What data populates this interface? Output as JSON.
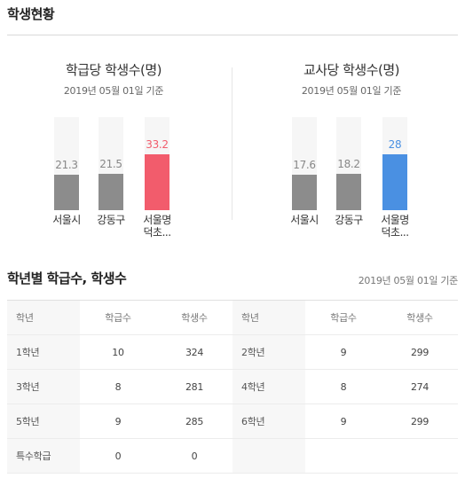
{
  "header": {
    "title": "학생현황"
  },
  "charts": [
    {
      "title": "학급당 학생수(명)",
      "date": "2019년 05월 01일 기준",
      "bars": [
        {
          "label": [
            "서울시"
          ],
          "value_text": "21.3",
          "value": 21.3,
          "highlight": false,
          "color": "#8c8c8c",
          "value_color": "#888888"
        },
        {
          "label": [
            "강동구"
          ],
          "value_text": "21.5",
          "value": 21.5,
          "highlight": false,
          "color": "#8c8c8c",
          "value_color": "#888888"
        },
        {
          "label": [
            "서울명",
            "덕초..."
          ],
          "value_text": "33.2",
          "value": 33.2,
          "highlight": true,
          "color": "#f25c6c",
          "value_color": "#f25c6c"
        }
      ],
      "max": 33.2
    },
    {
      "title": "교사당 학생수(명)",
      "date": "2019년 05월 01일 기준",
      "bars": [
        {
          "label": [
            "서울시"
          ],
          "value_text": "17.6",
          "value": 17.6,
          "highlight": false,
          "color": "#8c8c8c",
          "value_color": "#888888"
        },
        {
          "label": [
            "강동구"
          ],
          "value_text": "18.2",
          "value": 18.2,
          "highlight": false,
          "color": "#8c8c8c",
          "value_color": "#888888"
        },
        {
          "label": [
            "서울명",
            "덕초..."
          ],
          "value_text": "28",
          "value": 28,
          "highlight": true,
          "color": "#4a90e2",
          "value_color": "#4a90e2"
        }
      ],
      "max": 28
    }
  ],
  "grade_section": {
    "title": "학년별 학급수, 학생수",
    "date": "2019년 05월 01일 기준",
    "headers": [
      "학년",
      "학급수",
      "학생수",
      "학년",
      "학급수",
      "학생수"
    ],
    "rows": [
      [
        "1학년",
        "10",
        "324",
        "2학년",
        "9",
        "299"
      ],
      [
        "3학년",
        "8",
        "281",
        "4학년",
        "8",
        "274"
      ],
      [
        "5학년",
        "9",
        "285",
        "6학년",
        "9",
        "299"
      ],
      [
        "특수학급",
        "0",
        "0",
        "",
        "",
        ""
      ]
    ]
  }
}
